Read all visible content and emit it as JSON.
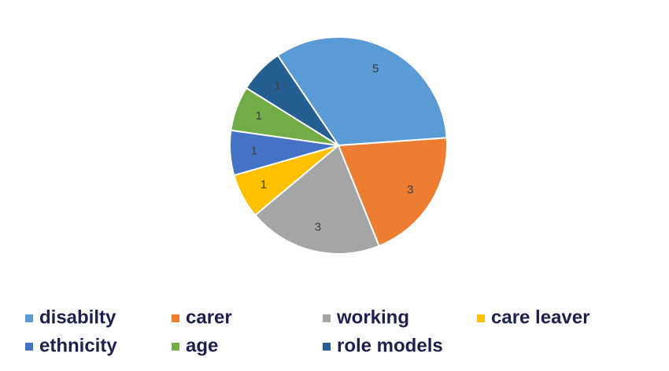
{
  "chart_data": {
    "type": "pie",
    "categories": [
      "disabilty",
      "carer",
      "working",
      "care leaver",
      "ethnicity",
      "age",
      "role models"
    ],
    "values": [
      5,
      3,
      3,
      1,
      1,
      1,
      1
    ],
    "colors": [
      "#5b9bd5",
      "#ed7d31",
      "#a5a5a5",
      "#ffc000",
      "#4472c4",
      "#70ad47",
      "#255e91"
    ],
    "legend": "bottom"
  }
}
